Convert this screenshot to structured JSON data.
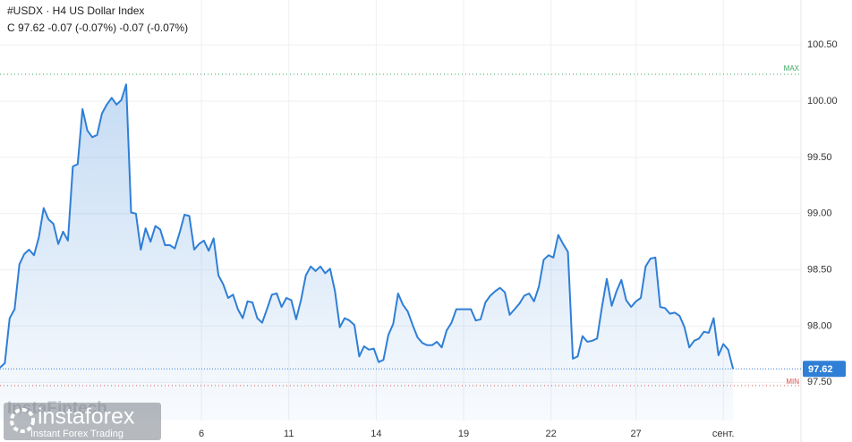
{
  "chart_data": {
    "type": "line",
    "title": "#USDX · H4 US Dollar Index",
    "subtitle": "C 97.62 -0.07 (-0.07%) -0.07 (-0.07%)",
    "color": "#2f7fd6",
    "values": [
      97.63,
      97.67,
      98.07,
      98.15,
      98.55,
      98.64,
      98.68,
      98.63,
      98.79,
      99.05,
      98.95,
      98.91,
      98.73,
      98.84,
      98.76,
      99.42,
      99.44,
      99.93,
      99.74,
      99.68,
      99.7,
      99.89,
      99.97,
      100.03,
      99.97,
      100.01,
      100.15,
      99.01,
      99.0,
      98.68,
      98.87,
      98.75,
      98.89,
      98.86,
      98.72,
      98.72,
      98.69,
      98.83,
      98.99,
      98.98,
      98.68,
      98.73,
      98.76,
      98.67,
      98.78,
      98.45,
      98.37,
      98.25,
      98.28,
      98.15,
      98.07,
      98.22,
      98.21,
      98.07,
      98.03,
      98.15,
      98.28,
      98.29,
      98.17,
      98.25,
      98.23,
      98.06,
      98.23,
      98.45,
      98.53,
      98.49,
      98.53,
      98.47,
      98.51,
      98.31,
      97.99,
      98.07,
      98.05,
      98.01,
      97.73,
      97.82,
      97.79,
      97.8,
      97.68,
      97.7,
      97.92,
      98.02,
      98.29,
      98.19,
      98.13,
      98.01,
      97.9,
      97.85,
      97.83,
      97.83,
      97.86,
      97.81,
      97.96,
      98.03,
      98.15,
      98.15,
      98.15,
      98.15,
      98.05,
      98.06,
      98.21,
      98.27,
      98.31,
      98.34,
      98.3,
      98.1,
      98.15,
      98.2,
      98.27,
      98.29,
      98.22,
      98.35,
      98.59,
      98.63,
      98.61,
      98.81,
      98.73,
      98.66,
      97.71,
      97.73,
      97.91,
      97.86,
      97.87,
      97.89,
      98.17,
      98.42,
      98.18,
      98.31,
      98.41,
      98.23,
      98.17,
      98.22,
      98.25,
      98.53,
      98.6,
      98.61,
      98.17,
      98.16,
      98.11,
      98.12,
      98.09,
      97.99,
      97.81,
      97.87,
      97.89,
      97.95,
      97.94,
      98.07,
      97.74,
      97.84,
      97.79,
      97.62
    ],
    "xlim": [
      0,
      165
    ],
    "xticks": [
      {
        "value": 41.5,
        "label": "6"
      },
      {
        "value": 59.5,
        "label": "11"
      },
      {
        "value": 77.5,
        "label": "14"
      },
      {
        "value": 95.5,
        "label": "19"
      },
      {
        "value": 113.5,
        "label": "22"
      },
      {
        "value": 131,
        "label": "27"
      },
      {
        "value": 149,
        "label": "сент."
      }
    ],
    "ylim": [
      97.16,
      100.9
    ],
    "yticks": [
      {
        "value": 97.5,
        "label": "97.50"
      },
      {
        "value": 98,
        "label": "98.00"
      },
      {
        "value": 98.5,
        "label": "98.50"
      },
      {
        "value": 99,
        "label": "99.00"
      },
      {
        "value": 99.5,
        "label": "99.50"
      },
      {
        "value": 100,
        "label": "100.00"
      },
      {
        "value": 100.5,
        "label": "100.50"
      }
    ],
    "grid": true,
    "max_line": {
      "label": "MAX",
      "value": 100.24,
      "color": "#3aa55d"
    },
    "min_line": {
      "label": "MIN",
      "value": 97.47,
      "color": "#e05252"
    },
    "last_value": 97.62
  },
  "branding": {
    "logo": "instaforex",
    "tagline": "Instant Forex Trading",
    "watermark": "InstaFintech"
  }
}
